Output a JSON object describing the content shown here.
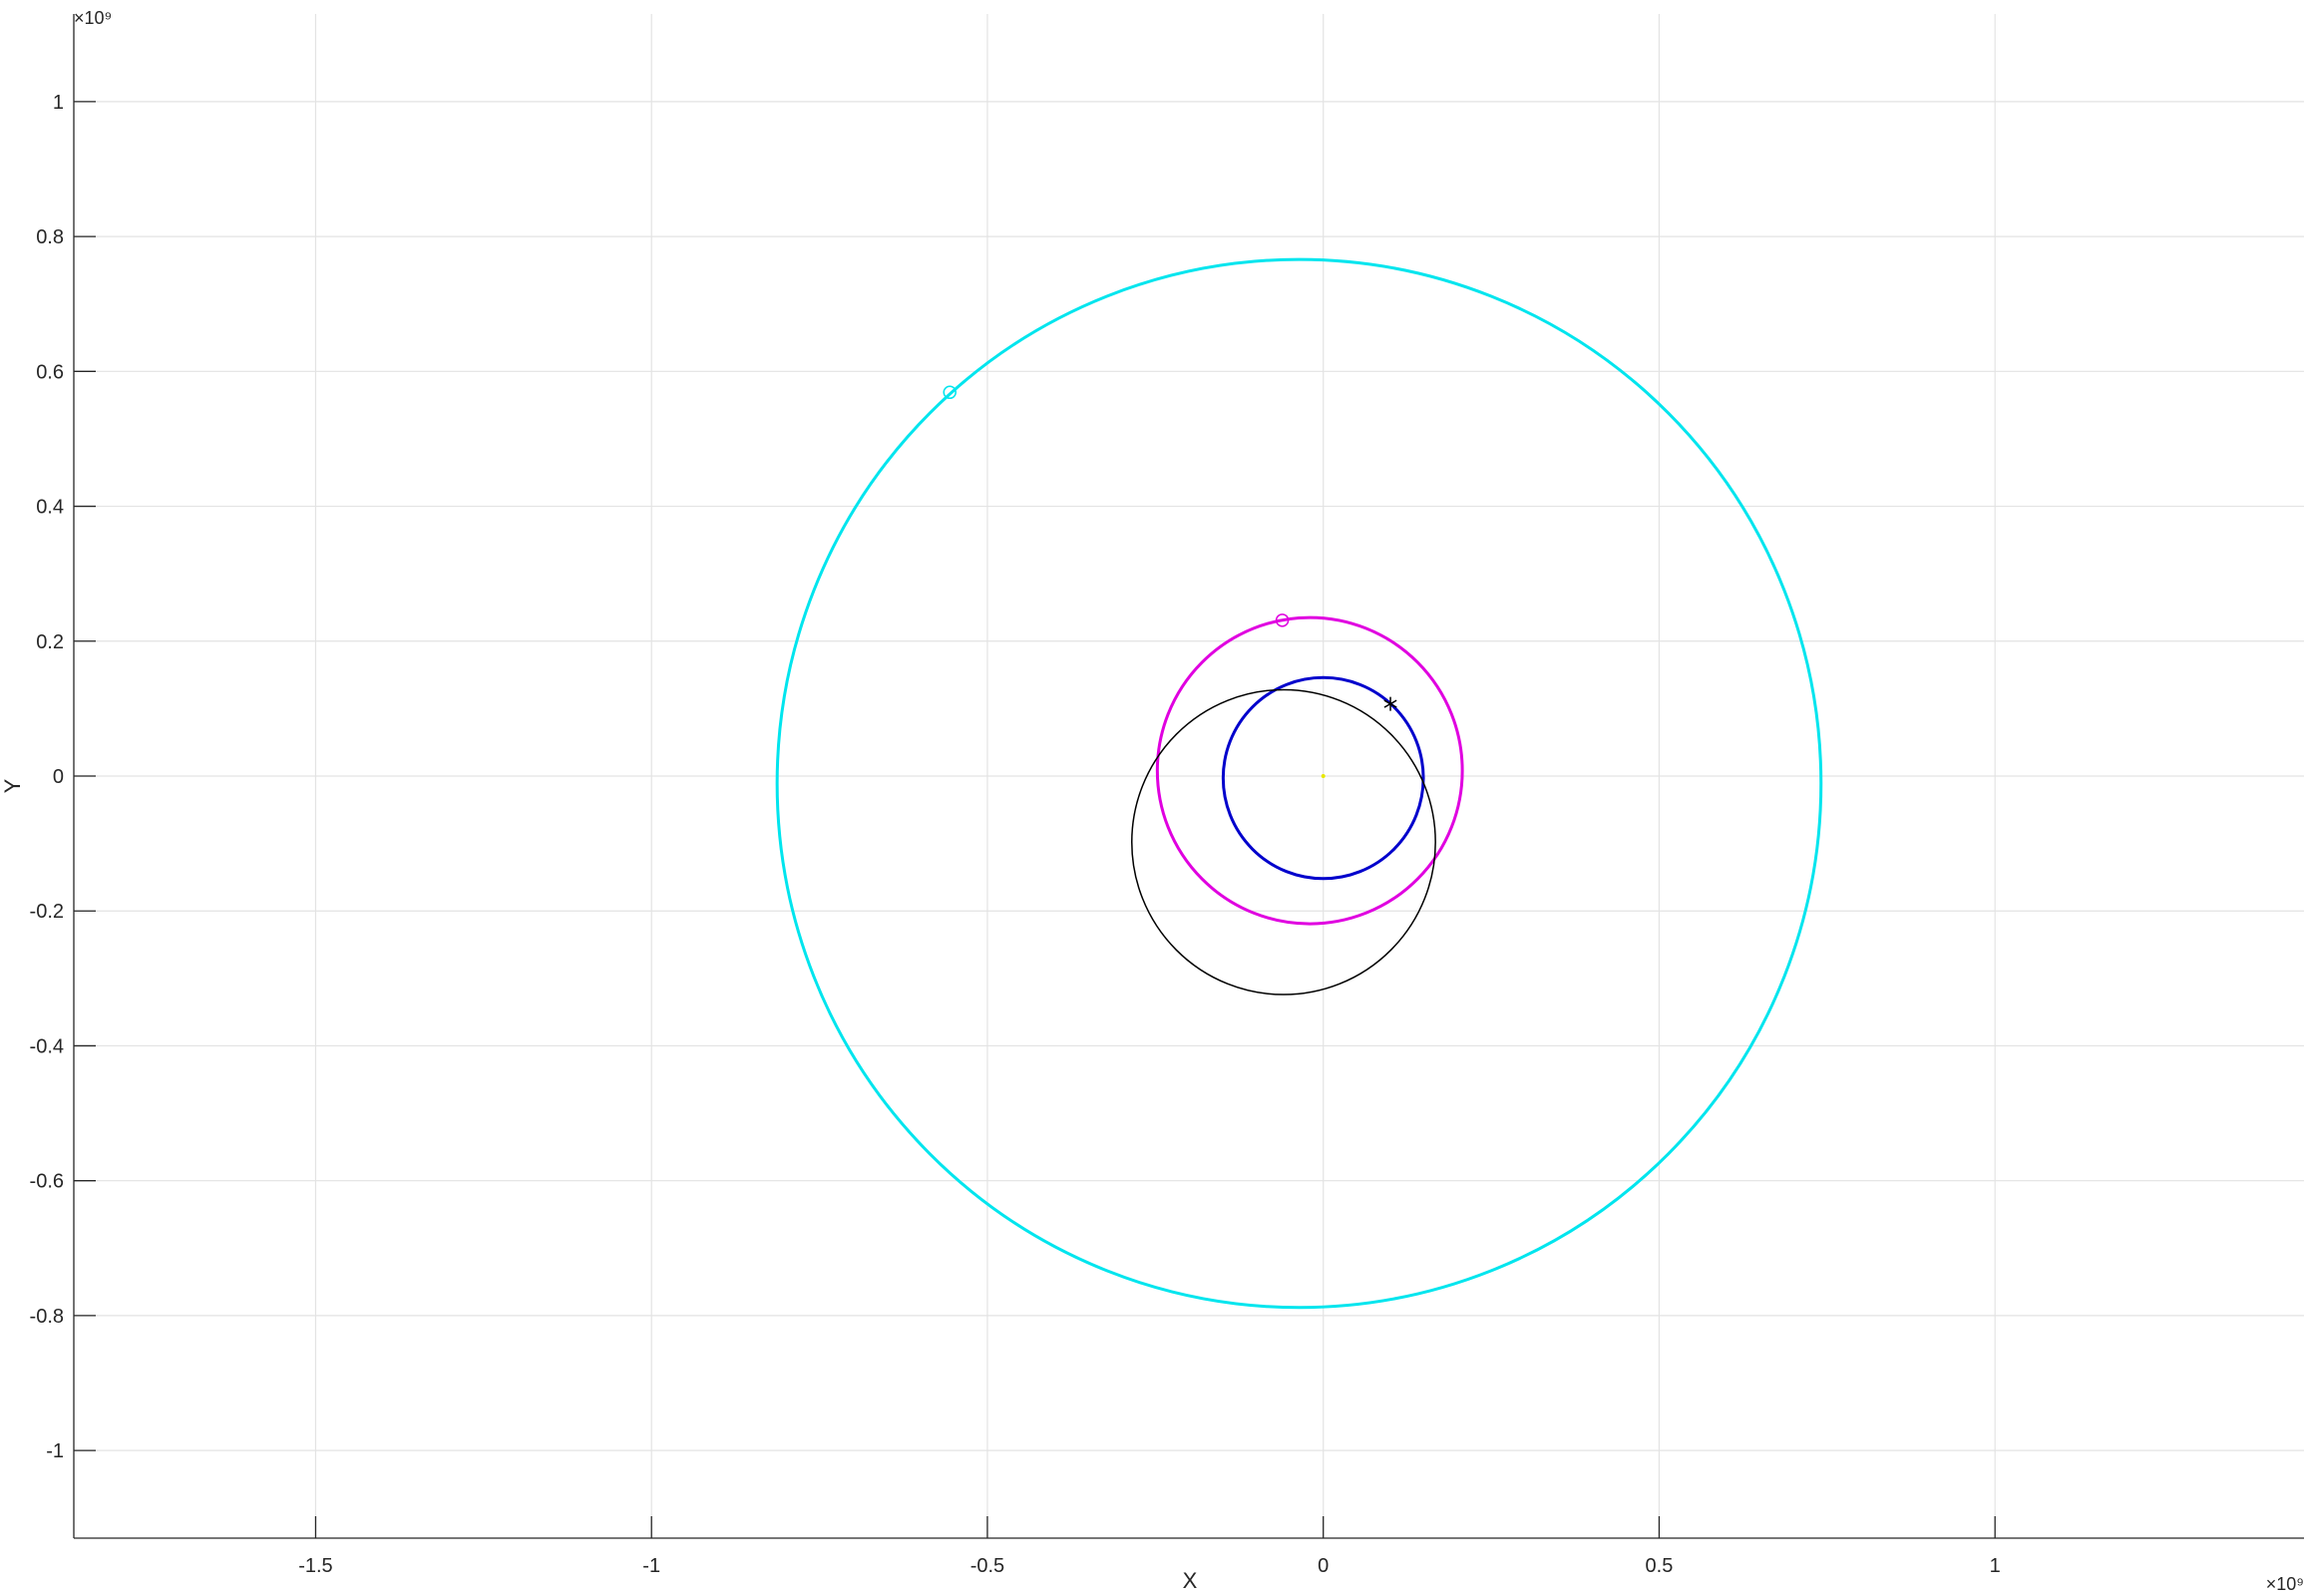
{
  "chart_data": {
    "type": "line",
    "title": "",
    "xlabel": "X",
    "ylabel": "Y",
    "x_exponent_label": "×10⁹",
    "y_exponent_label": "×10⁹",
    "xlim": [
      -1.86,
      1.46
    ],
    "ylim": [
      -1.13,
      1.13
    ],
    "grid": true,
    "legend": "none",
    "xticks": [
      -1.5,
      -1,
      -0.5,
      0,
      0.5,
      1
    ],
    "xtick_labels": [
      "-1.5",
      "-1",
      "-0.5",
      "0",
      "0.5",
      "1"
    ],
    "yticks": [
      -1,
      -0.8,
      -0.6,
      -0.4,
      -0.2,
      0,
      0.2,
      0.4,
      0.6,
      0.8,
      1
    ],
    "ytick_labels": [
      "-1",
      "-0.8",
      "-0.6",
      "-0.4",
      "-0.2",
      "0",
      "0.2",
      "0.4",
      "0.6",
      "0.8",
      "1"
    ],
    "series": [
      {
        "kind": "orbit",
        "color": "#00e5ee",
        "center": [
          -0.036,
          -0.011
        ],
        "radius": 0.777
      },
      {
        "kind": "orbit",
        "color": "#e000e0",
        "center": [
          -0.02,
          0.008
        ],
        "radius": 0.227
      },
      {
        "kind": "orbit",
        "color": "#0000cc",
        "center": [
          0.0,
          -0.003
        ],
        "radius": 0.149
      },
      {
        "kind": "orbit",
        "color": "#000000",
        "center": [
          -0.059,
          -0.098
        ],
        "radius": 0.226
      }
    ],
    "markers": [
      {
        "kind": "circle",
        "color": "#00e5ee",
        "x": -0.556,
        "y": 0.569
      },
      {
        "kind": "circle",
        "color": "#e000e0",
        "x": -0.061,
        "y": 0.231
      },
      {
        "kind": "asterisk",
        "color": "#000000",
        "x": 0.1,
        "y": 0.107
      },
      {
        "kind": "dot",
        "color": "#e8e800",
        "x": 0.0,
        "y": 0.0
      }
    ]
  }
}
